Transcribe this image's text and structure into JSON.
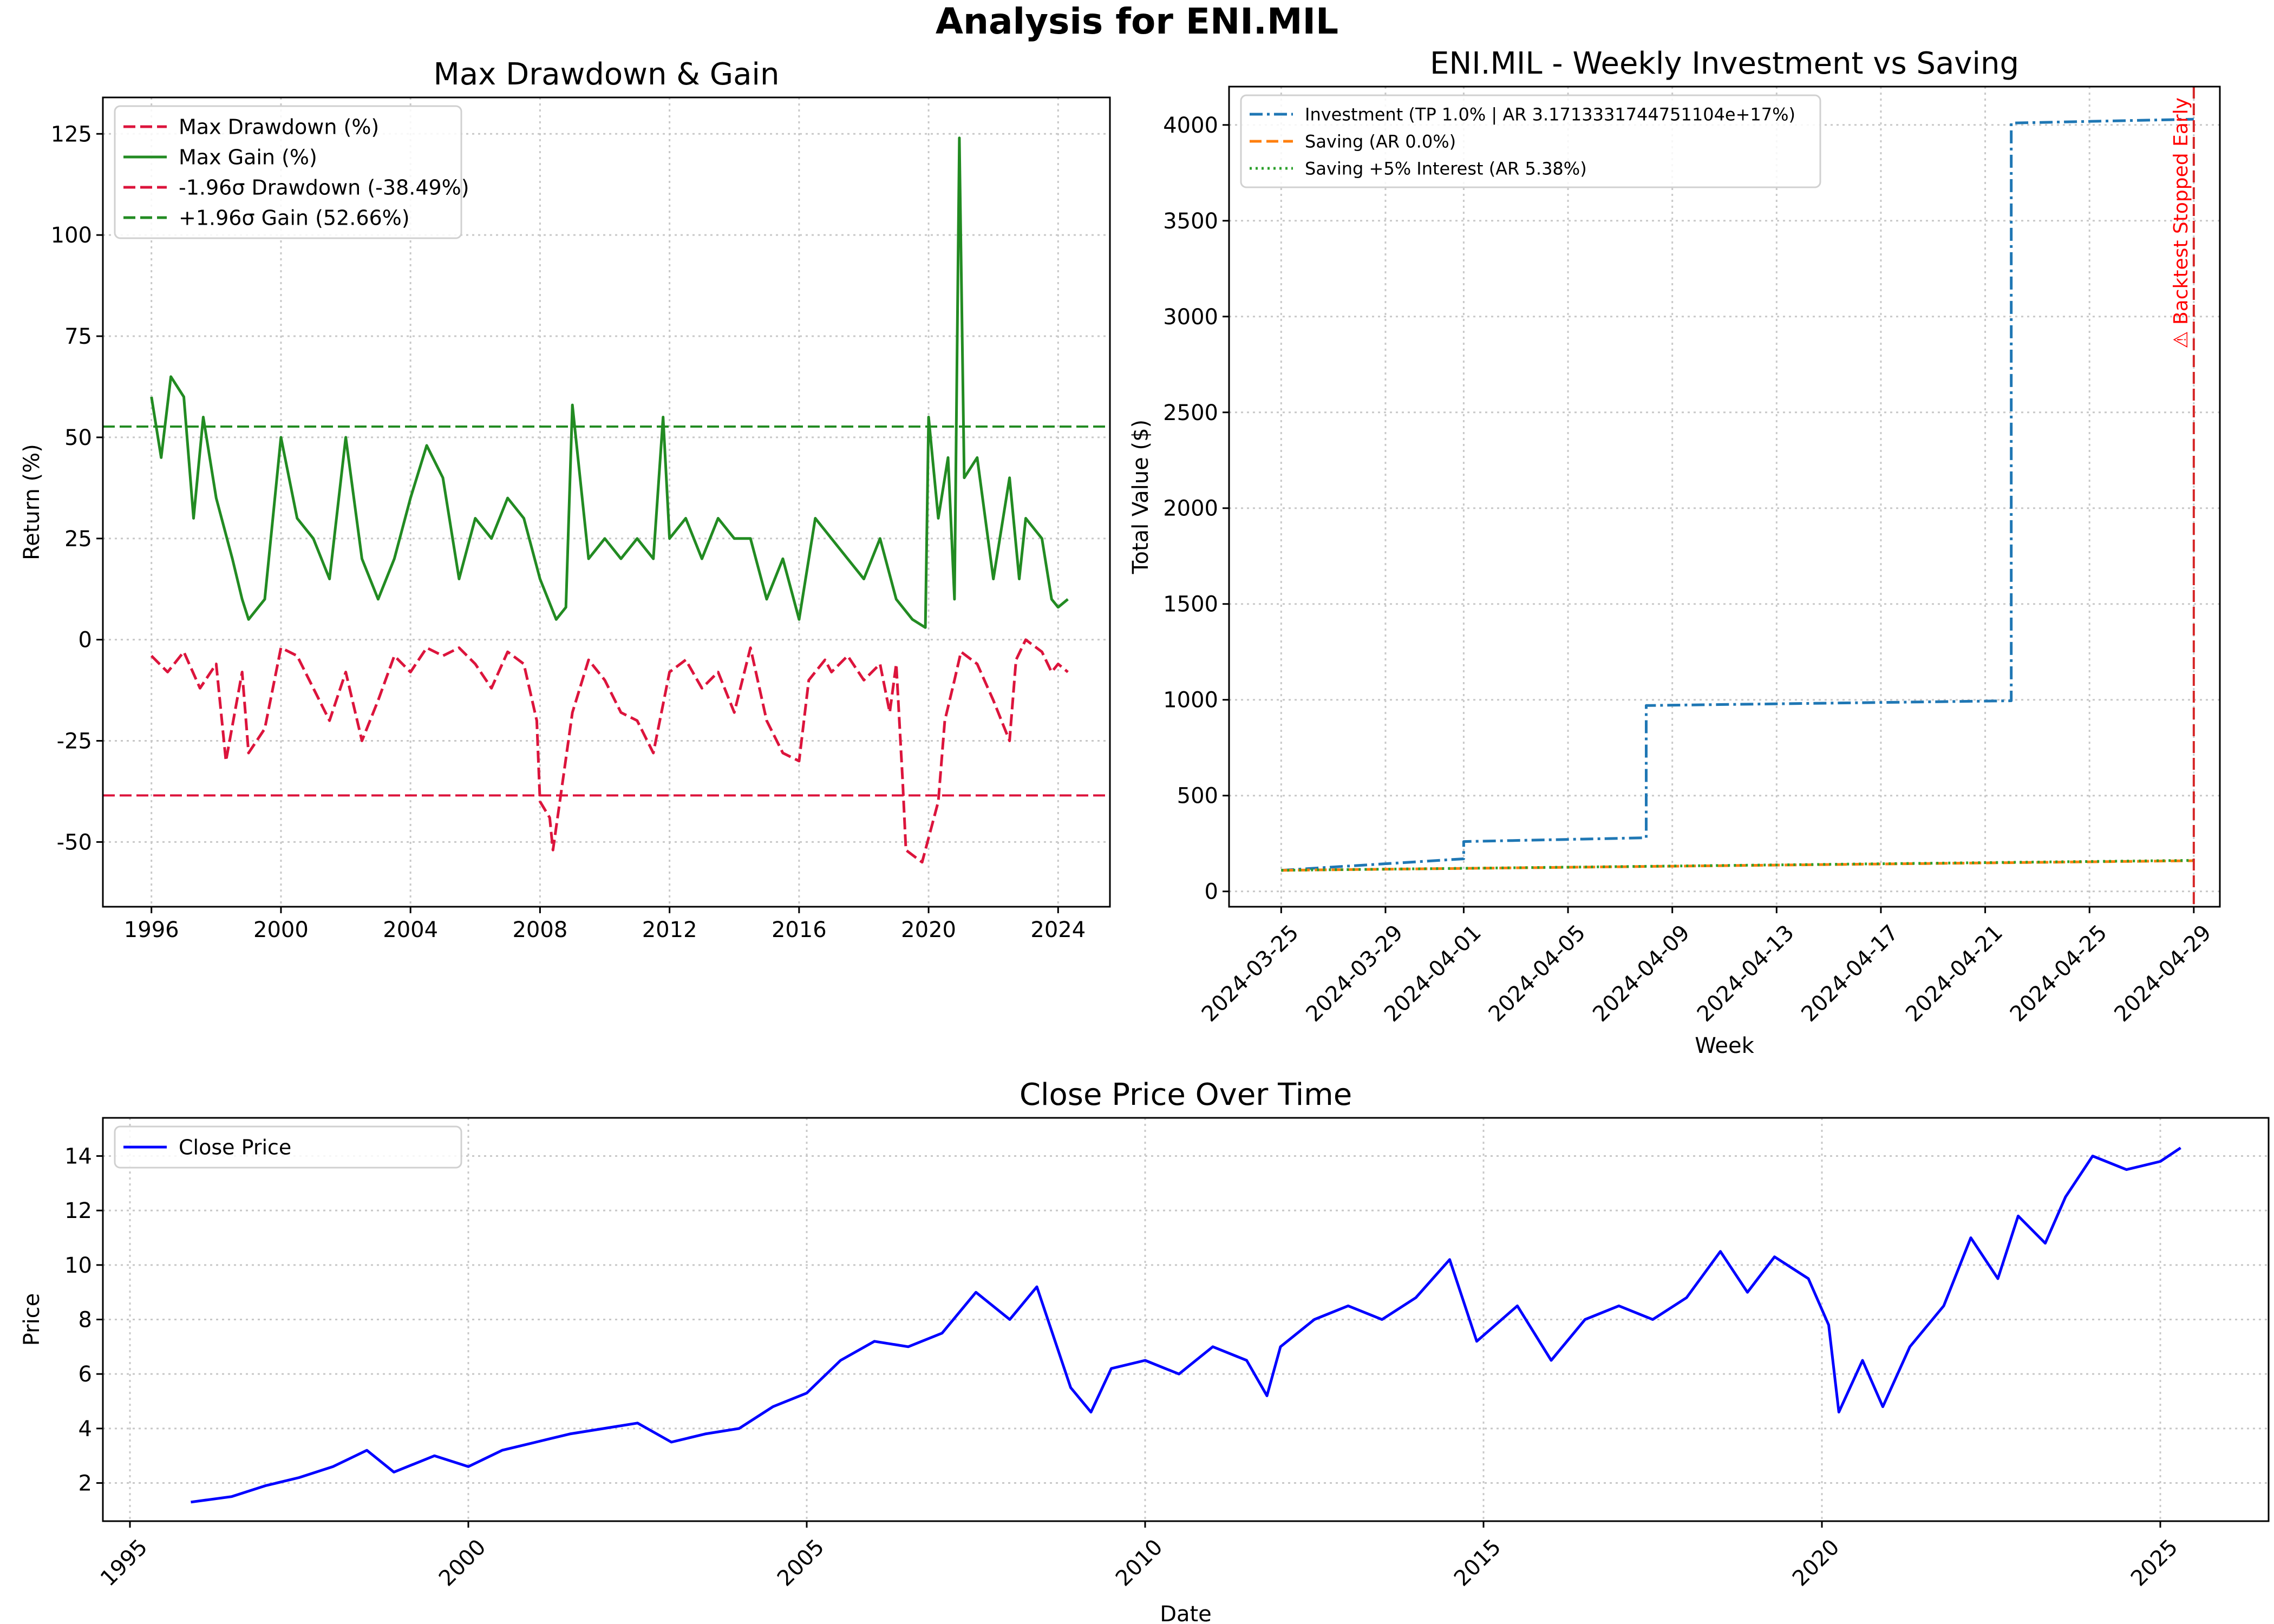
{
  "figure_title": "Analysis for ENI.MIL",
  "chart_data": [
    {
      "type": "line",
      "title": "Max Drawdown & Gain",
      "xlabel": "",
      "ylabel": "Return (%)",
      "xlim": [
        1994.5,
        2025.6
      ],
      "ylim": [
        -66,
        134
      ],
      "x_ticks": [
        1996,
        2000,
        2004,
        2008,
        2012,
        2016,
        2020,
        2024
      ],
      "y_ticks": [
        -50,
        -25,
        0,
        25,
        50,
        75,
        100,
        125
      ],
      "grid": true,
      "legend_position": "top-left",
      "legend": [
        "Max Drawdown (%)",
        "Max Gain (%)",
        "-1.96σ Drawdown (-38.49%)",
        "+1.96σ Gain (52.66%)"
      ],
      "series": [
        {
          "name": "Max Drawdown (%)",
          "color": "#dc143c",
          "style": "dashed",
          "points": [
            [
              1996.0,
              -4
            ],
            [
              1996.5,
              -8
            ],
            [
              1997.0,
              -3
            ],
            [
              1997.5,
              -12
            ],
            [
              1998.0,
              -6
            ],
            [
              1998.3,
              -30
            ],
            [
              1998.8,
              -8
            ],
            [
              1999.0,
              -28
            ],
            [
              1999.5,
              -22
            ],
            [
              2000.0,
              -2
            ],
            [
              2000.5,
              -4
            ],
            [
              2001.0,
              -12
            ],
            [
              2001.5,
              -20
            ],
            [
              2002.0,
              -8
            ],
            [
              2002.5,
              -25
            ],
            [
              2003.0,
              -15
            ],
            [
              2003.5,
              -4
            ],
            [
              2004.0,
              -8
            ],
            [
              2004.5,
              -2
            ],
            [
              2005.0,
              -4
            ],
            [
              2005.5,
              -2
            ],
            [
              2006.0,
              -6
            ],
            [
              2006.5,
              -12
            ],
            [
              2007.0,
              -3
            ],
            [
              2007.5,
              -6
            ],
            [
              2007.9,
              -20
            ],
            [
              2008.0,
              -40
            ],
            [
              2008.3,
              -44
            ],
            [
              2008.4,
              -52
            ],
            [
              2008.7,
              -35
            ],
            [
              2009.0,
              -18
            ],
            [
              2009.5,
              -5
            ],
            [
              2010.0,
              -10
            ],
            [
              2010.5,
              -18
            ],
            [
              2011.0,
              -20
            ],
            [
              2011.5,
              -28
            ],
            [
              2012.0,
              -8
            ],
            [
              2012.5,
              -5
            ],
            [
              2013.0,
              -12
            ],
            [
              2013.5,
              -8
            ],
            [
              2014.0,
              -18
            ],
            [
              2014.5,
              -2
            ],
            [
              2015.0,
              -20
            ],
            [
              2015.5,
              -28
            ],
            [
              2016.0,
              -30
            ],
            [
              2016.3,
              -10
            ],
            [
              2016.8,
              -5
            ],
            [
              2017.0,
              -8
            ],
            [
              2017.5,
              -4
            ],
            [
              2018.0,
              -10
            ],
            [
              2018.5,
              -6
            ],
            [
              2018.8,
              -18
            ],
            [
              2019.0,
              -6
            ],
            [
              2019.2,
              -35
            ],
            [
              2019.3,
              -52
            ],
            [
              2019.8,
              -55
            ],
            [
              2020.3,
              -40
            ],
            [
              2020.5,
              -20
            ],
            [
              2020.8,
              -10
            ],
            [
              2021.0,
              -3
            ],
            [
              2021.5,
              -6
            ],
            [
              2022.0,
              -15
            ],
            [
              2022.5,
              -25
            ],
            [
              2022.7,
              -5
            ],
            [
              2023.0,
              0
            ],
            [
              2023.5,
              -3
            ],
            [
              2023.8,
              -8
            ],
            [
              2024.0,
              -6
            ],
            [
              2024.3,
              -8
            ]
          ]
        },
        {
          "name": "Max Gain (%)",
          "color": "#228b22",
          "style": "solid",
          "points": [
            [
              1996.0,
              60
            ],
            [
              1996.3,
              45
            ],
            [
              1996.6,
              65
            ],
            [
              1997.0,
              60
            ],
            [
              1997.3,
              30
            ],
            [
              1997.6,
              55
            ],
            [
              1998.0,
              35
            ],
            [
              1998.5,
              20
            ],
            [
              1998.8,
              10
            ],
            [
              1999.0,
              5
            ],
            [
              1999.5,
              10
            ],
            [
              2000.0,
              50
            ],
            [
              2000.5,
              30
            ],
            [
              2001.0,
              25
            ],
            [
              2001.5,
              15
            ],
            [
              2002.0,
              50
            ],
            [
              2002.5,
              20
            ],
            [
              2003.0,
              10
            ],
            [
              2003.5,
              20
            ],
            [
              2004.0,
              35
            ],
            [
              2004.5,
              48
            ],
            [
              2005.0,
              40
            ],
            [
              2005.5,
              15
            ],
            [
              2006.0,
              30
            ],
            [
              2006.5,
              25
            ],
            [
              2007.0,
              35
            ],
            [
              2007.5,
              30
            ],
            [
              2008.0,
              15
            ],
            [
              2008.5,
              5
            ],
            [
              2008.8,
              8
            ],
            [
              2009.0,
              58
            ],
            [
              2009.5,
              20
            ],
            [
              2010.0,
              25
            ],
            [
              2010.5,
              20
            ],
            [
              2011.0,
              25
            ],
            [
              2011.5,
              20
            ],
            [
              2011.8,
              55
            ],
            [
              2012.0,
              25
            ],
            [
              2012.5,
              30
            ],
            [
              2013.0,
              20
            ],
            [
              2013.5,
              30
            ],
            [
              2014.0,
              25
            ],
            [
              2014.5,
              25
            ],
            [
              2015.0,
              10
            ],
            [
              2015.5,
              20
            ],
            [
              2016.0,
              5
            ],
            [
              2016.5,
              30
            ],
            [
              2017.0,
              25
            ],
            [
              2017.5,
              20
            ],
            [
              2018.0,
              15
            ],
            [
              2018.5,
              25
            ],
            [
              2019.0,
              10
            ],
            [
              2019.5,
              5
            ],
            [
              2019.9,
              3
            ],
            [
              2020.0,
              55
            ],
            [
              2020.3,
              30
            ],
            [
              2020.6,
              45
            ],
            [
              2020.8,
              10
            ],
            [
              2020.95,
              124
            ],
            [
              2021.1,
              40
            ],
            [
              2021.5,
              45
            ],
            [
              2022.0,
              15
            ],
            [
              2022.5,
              40
            ],
            [
              2022.8,
              15
            ],
            [
              2023.0,
              30
            ],
            [
              2023.5,
              25
            ],
            [
              2023.8,
              10
            ],
            [
              2024.0,
              8
            ],
            [
              2024.3,
              10
            ]
          ]
        }
      ],
      "reference_lines": [
        {
          "name": "-1.96σ Drawdown (-38.49%)",
          "y": -38.49,
          "color": "#dc143c",
          "style": "dashed"
        },
        {
          "name": "+1.96σ Gain (52.66%)",
          "y": 52.66,
          "color": "#228b22",
          "style": "dashed"
        }
      ]
    },
    {
      "type": "line",
      "title": "ENI.MIL - Weekly Investment vs Saving",
      "xlabel": "Week",
      "ylabel": "Total Value ($)",
      "xlim": [
        "2024-03-23",
        "2024-04-30"
      ],
      "ylim": [
        -80,
        4200
      ],
      "x_ticks": [
        "2024-03-25",
        "2024-03-29",
        "2024-04-01",
        "2024-04-05",
        "2024-04-09",
        "2024-04-13",
        "2024-04-17",
        "2024-04-21",
        "2024-04-25",
        "2024-04-29"
      ],
      "y_ticks": [
        0,
        500,
        1000,
        1500,
        2000,
        2500,
        3000,
        3500,
        4000
      ],
      "grid": true,
      "legend_position": "top-left",
      "legend": [
        "Investment (TP 1.0% | AR 3.1713331744751104e+17%)",
        "Saving (AR 0.0%)",
        "Saving +5% Interest (AR 5.38%)"
      ],
      "series": [
        {
          "name": "Investment (TP 1.0% | AR 3.1713331744751104e+17%)",
          "color": "#1f77b4",
          "style": "dashdot",
          "points": [
            [
              "2024-03-25",
              110
            ],
            [
              "2024-04-01",
              170
            ],
            [
              "2024-04-01",
              260
            ],
            [
              "2024-04-08",
              280
            ],
            [
              "2024-04-08",
              970
            ],
            [
              "2024-04-22",
              995
            ],
            [
              "2024-04-22",
              4010
            ],
            [
              "2024-04-29",
              4030
            ]
          ]
        },
        {
          "name": "Saving (AR 0.0%)",
          "color": "#ff7f0e",
          "style": "dashed",
          "points": [
            [
              "2024-03-25",
              110
            ],
            [
              "2024-04-29",
              160
            ]
          ]
        },
        {
          "name": "Saving +5% Interest (AR 5.38%)",
          "color": "#2ca02c",
          "style": "dotted",
          "points": [
            [
              "2024-03-25",
              110
            ],
            [
              "2024-04-29",
              162
            ]
          ]
        }
      ],
      "annotation": {
        "text": "⚠ Backtest Stopped Early",
        "x": "2024-04-29",
        "color": "#ff0000"
      }
    },
    {
      "type": "line",
      "title": "Close Price Over Time",
      "xlabel": "Date",
      "ylabel": "Price",
      "xlim": [
        1994.6,
        2026.6
      ],
      "ylim": [
        0.6,
        15.4
      ],
      "x_ticks": [
        1995,
        2000,
        2005,
        2010,
        2015,
        2020,
        2025
      ],
      "y_ticks": [
        2,
        4,
        6,
        8,
        10,
        12,
        14
      ],
      "grid": true,
      "legend_position": "top-left",
      "legend": [
        "Close Price"
      ],
      "series": [
        {
          "name": "Close Price",
          "color": "#0000ff",
          "style": "solid",
          "points": [
            [
              1995.9,
              1.3
            ],
            [
              1996.5,
              1.5
            ],
            [
              1997.0,
              1.9
            ],
            [
              1997.5,
              2.2
            ],
            [
              1998.0,
              2.6
            ],
            [
              1998.5,
              3.2
            ],
            [
              1998.9,
              2.4
            ],
            [
              1999.5,
              3.0
            ],
            [
              2000.0,
              2.6
            ],
            [
              2000.5,
              3.2
            ],
            [
              2001.0,
              3.5
            ],
            [
              2001.5,
              3.8
            ],
            [
              2002.0,
              4.0
            ],
            [
              2002.5,
              4.2
            ],
            [
              2003.0,
              3.5
            ],
            [
              2003.5,
              3.8
            ],
            [
              2004.0,
              4.0
            ],
            [
              2004.5,
              4.8
            ],
            [
              2005.0,
              5.3
            ],
            [
              2005.5,
              6.5
            ],
            [
              2006.0,
              7.2
            ],
            [
              2006.5,
              7.0
            ],
            [
              2007.0,
              7.5
            ],
            [
              2007.5,
              9.0
            ],
            [
              2008.0,
              8.0
            ],
            [
              2008.4,
              9.2
            ],
            [
              2008.9,
              5.5
            ],
            [
              2009.2,
              4.6
            ],
            [
              2009.5,
              6.2
            ],
            [
              2010.0,
              6.5
            ],
            [
              2010.5,
              6.0
            ],
            [
              2011.0,
              7.0
            ],
            [
              2011.5,
              6.5
            ],
            [
              2011.8,
              5.2
            ],
            [
              2012.0,
              7.0
            ],
            [
              2012.5,
              8.0
            ],
            [
              2013.0,
              8.5
            ],
            [
              2013.5,
              8.0
            ],
            [
              2014.0,
              8.8
            ],
            [
              2014.5,
              10.2
            ],
            [
              2014.9,
              7.2
            ],
            [
              2015.5,
              8.5
            ],
            [
              2016.0,
              6.5
            ],
            [
              2016.5,
              8.0
            ],
            [
              2017.0,
              8.5
            ],
            [
              2017.5,
              8.0
            ],
            [
              2018.0,
              8.8
            ],
            [
              2018.5,
              10.5
            ],
            [
              2018.9,
              9.0
            ],
            [
              2019.3,
              10.3
            ],
            [
              2019.8,
              9.5
            ],
            [
              2020.1,
              7.8
            ],
            [
              2020.25,
              4.6
            ],
            [
              2020.6,
              6.5
            ],
            [
              2020.9,
              4.8
            ],
            [
              2021.3,
              7.0
            ],
            [
              2021.8,
              8.5
            ],
            [
              2022.2,
              11.0
            ],
            [
              2022.6,
              9.5
            ],
            [
              2022.9,
              11.8
            ],
            [
              2023.3,
              10.8
            ],
            [
              2023.6,
              12.5
            ],
            [
              2024.0,
              14.0
            ],
            [
              2024.5,
              13.5
            ],
            [
              2025.0,
              13.8
            ],
            [
              2025.3,
              14.3
            ]
          ]
        }
      ]
    }
  ]
}
